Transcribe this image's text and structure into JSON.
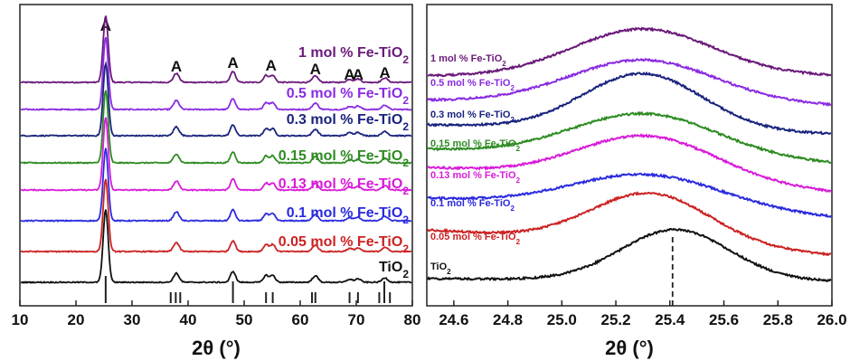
{
  "chart_data": [
    {
      "type": "line",
      "xlabel": "2θ (°)",
      "xlim": [
        10,
        80
      ],
      "x_ticks": [
        "10",
        "20",
        "30",
        "40",
        "50",
        "60",
        "70",
        "80"
      ],
      "y_ticks_shown": false,
      "peak_marker": "A",
      "anatase_peaks_2theta": [
        25.3,
        37.9,
        48.0,
        54.8,
        62.7,
        68.8,
        70.3,
        75.1
      ],
      "reference_sticks_2theta": [
        25.3,
        36.9,
        37.8,
        38.6,
        48.0,
        53.9,
        55.1,
        62.1,
        62.7,
        68.8,
        70.3,
        74.1,
        75.0,
        76.0
      ],
      "series": [
        {
          "name": "1 mol % Fe-TiO₂",
          "color": "#6a1a7a"
        },
        {
          "name": "0.5 mol % Fe-TiO₂",
          "color": "#8a2be2"
        },
        {
          "name": "0.3 mol % Fe-TiO₂",
          "color": "#1a237e"
        },
        {
          "name": "0.15 mol % Fe-TiO₂",
          "color": "#2e8b22"
        },
        {
          "name": "0.13 mol % Fe-TiO₂",
          "color": "#d81bd8"
        },
        {
          "name": "0.1 mol % Fe-TiO₂",
          "color": "#2a2ae0"
        },
        {
          "name": "0.05 mol % Fe-TiO₂",
          "color": "#cc2222"
        },
        {
          "name": "TiO₂",
          "color": "#111111"
        }
      ]
    },
    {
      "type": "line",
      "xlabel": "2θ (°)",
      "xlim": [
        24.5,
        26.0
      ],
      "x_ticks": [
        "24.6",
        "24.8",
        "25.0",
        "25.2",
        "25.4",
        "25.6",
        "25.8",
        "26.0"
      ],
      "y_ticks_shown": false,
      "reference_line_2theta": 25.41,
      "series": [
        {
          "name": "1 mol % Fe-TiO₂",
          "color": "#6a1a7a",
          "peak_2theta": 25.3
        },
        {
          "name": "0.5 mol % Fe-TiO₂",
          "color": "#8a2be2",
          "peak_2theta": 25.3
        },
        {
          "name": "0.3 mol % Fe-TiO₂",
          "color": "#1a237e",
          "peak_2theta": 25.3
        },
        {
          "name": "0.15 mol % Fe-TiO₂",
          "color": "#2e8b22",
          "peak_2theta": 25.31
        },
        {
          "name": "0.13 mol % Fe-TiO₂",
          "color": "#d81bd8",
          "peak_2theta": 25.32
        },
        {
          "name": "0.1 mol % Fe-TiO₂",
          "color": "#2a2ae0",
          "peak_2theta": 25.32
        },
        {
          "name": "0.05 mol % Fe-TiO₂",
          "color": "#cc2222",
          "peak_2theta": 25.33
        },
        {
          "name": "TiO₂",
          "color": "#111111",
          "peak_2theta": 25.42
        }
      ]
    }
  ]
}
